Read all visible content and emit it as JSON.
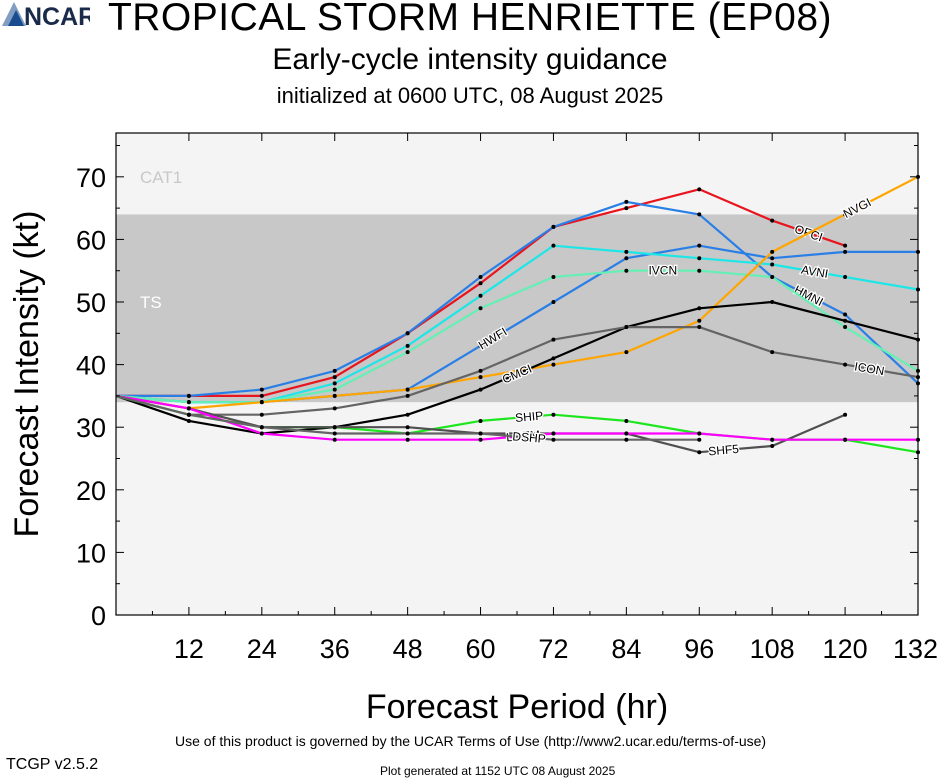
{
  "header": {
    "title": "TROPICAL STORM HENRIETTE (EP08)",
    "subtitle": "Early-cycle intensity guidance",
    "init": "initialized at 0600 UTC, 08 August 2025"
  },
  "footer": {
    "terms": "Use of this product is governed by the UCAR Terms of Use (http://www2.ucar.edu/terms-of-use)",
    "version": "TCGP v2.5.2",
    "generated": "Plot generated at 1152 UTC   08 August 2025",
    "logo_text": "NCAR"
  },
  "chart_data": {
    "type": "line",
    "xlabel": "Forecast Period (hr)",
    "ylabel": "Forecast Intensity (kt)",
    "xlim": [
      0,
      132
    ],
    "ylim": [
      0,
      77
    ],
    "xticks": [
      12,
      24,
      36,
      48,
      60,
      72,
      84,
      96,
      108,
      120,
      132
    ],
    "yticks": [
      0,
      10,
      20,
      30,
      40,
      50,
      60,
      70
    ],
    "bands": [
      {
        "label": "TS",
        "from": 34,
        "to": 64,
        "color": "#c8c8c8"
      },
      {
        "label": "CAT1",
        "from": 64,
        "to": 77,
        "color": "#f4f4f4"
      }
    ],
    "series": [
      {
        "name": "OFCI",
        "color": "#e8141e",
        "label_at": 114,
        "x": [
          0,
          12,
          24,
          36,
          48,
          60,
          72,
          84,
          96,
          108,
          120
        ],
        "y": [
          35,
          35,
          35,
          38,
          45,
          53,
          62,
          65,
          68,
          63,
          59
        ]
      },
      {
        "name": "HMNI",
        "color": "#2a7fe6",
        "label_at": 114,
        "x": [
          0,
          12,
          24,
          36,
          48,
          60,
          72,
          84,
          96,
          108,
          120,
          132
        ],
        "y": [
          35,
          35,
          36,
          39,
          45,
          54,
          62,
          66,
          64,
          54,
          48,
          37
        ]
      },
      {
        "name": "HWFI",
        "color": "#2a7fe6",
        "label_at": 62,
        "x": [
          0,
          12,
          24,
          36,
          48,
          60,
          72,
          84,
          96,
          108,
          120,
          132
        ],
        "y": [
          35,
          34,
          34,
          35,
          36,
          43,
          50,
          57,
          59,
          57,
          58,
          58
        ]
      },
      {
        "name": "AVNI",
        "color": "#1ee6e6",
        "label_at": 115,
        "x": [
          0,
          12,
          24,
          36,
          48,
          60,
          72,
          84,
          96,
          108,
          120,
          132
        ],
        "y": [
          35,
          34,
          34,
          37,
          43,
          51,
          59,
          58,
          57,
          56,
          54,
          52
        ]
      },
      {
        "name": "IVCN",
        "color": "#64f0b4",
        "label_at": 90,
        "x": [
          0,
          12,
          24,
          36,
          48,
          60,
          72,
          84,
          96,
          108,
          120,
          132
        ],
        "y": [
          35,
          34,
          34,
          36,
          42,
          49,
          54,
          55,
          55,
          54,
          46,
          39
        ]
      },
      {
        "name": "NVGI",
        "color": "#ffa500",
        "label_at": 122,
        "x": [
          0,
          12,
          24,
          36,
          48,
          60,
          72,
          84,
          96,
          108,
          120,
          132
        ],
        "y": [
          35,
          33,
          34,
          35,
          36,
          38,
          40,
          42,
          47,
          58,
          64,
          70
        ]
      },
      {
        "name": "CMCI",
        "color": "#000000",
        "label_at": 66,
        "x": [
          0,
          12,
          24,
          36,
          48,
          60,
          72,
          84,
          96,
          108,
          120,
          132
        ],
        "y": [
          35,
          31,
          29,
          30,
          32,
          36,
          41,
          46,
          49,
          50,
          47,
          44
        ]
      },
      {
        "name": "ICON",
        "color": "#646464",
        "label_at": 124,
        "x": [
          0,
          12,
          24,
          36,
          48,
          60,
          72,
          84,
          96,
          108,
          120,
          132
        ],
        "y": [
          35,
          32,
          32,
          33,
          35,
          39,
          44,
          46,
          46,
          42,
          40,
          38
        ]
      },
      {
        "name": "SHIP",
        "color": "#1ee61e",
        "label_at": 68,
        "x": [
          0,
          12,
          24,
          36,
          48,
          60,
          72,
          84,
          96,
          108,
          120,
          132
        ],
        "y": [
          35,
          32,
          30,
          30,
          29,
          31,
          32,
          31,
          29,
          28,
          28,
          26
        ]
      },
      {
        "name": "SHF5",
        "color": "#505050",
        "label_at": 100,
        "x": [
          0,
          12,
          24,
          36,
          48,
          60,
          72,
          84,
          96,
          108,
          120
        ],
        "y": [
          35,
          33,
          30,
          30,
          30,
          29,
          29,
          29,
          26,
          27,
          32
        ]
      },
      {
        "name": "LGEM",
        "color": "#ff00ff",
        "label_at": 67,
        "x": [
          0,
          12,
          24,
          36,
          48,
          60,
          72,
          84,
          96,
          108,
          120,
          132
        ],
        "y": [
          35,
          33,
          29,
          28,
          28,
          28,
          29,
          29,
          29,
          28,
          28,
          28
        ]
      },
      {
        "name": "DSHP",
        "color": "#646464",
        "label_at": 68,
        "x": [
          0,
          12,
          24,
          36,
          48,
          60,
          72,
          84,
          96
        ],
        "y": [
          35,
          32,
          30,
          29,
          29,
          29,
          28,
          28,
          28
        ]
      }
    ]
  }
}
